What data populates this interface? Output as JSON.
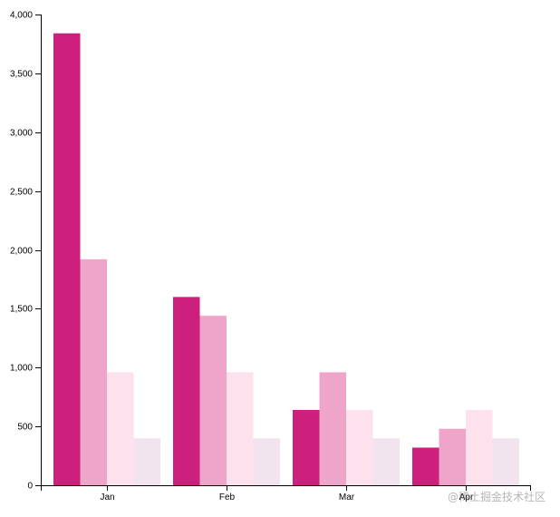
{
  "chart_data": {
    "type": "bar",
    "categories": [
      "Jan",
      "Feb",
      "Mar",
      "Apr"
    ],
    "series": [
      {
        "color": "#cd1f7c",
        "values": [
          3840,
          1600,
          640,
          320
        ]
      },
      {
        "color": "#efa5c9",
        "values": [
          1920,
          1440,
          960,
          480
        ]
      },
      {
        "color": "#fde1ec",
        "values": [
          960,
          960,
          640,
          640
        ]
      },
      {
        "color": "#f1e4ee",
        "values": [
          400,
          400,
          400,
          400
        ]
      }
    ],
    "yticks": [
      0,
      500,
      1000,
      1500,
      2000,
      2500,
      3000,
      3500,
      4000
    ],
    "ytick_labels": [
      "0",
      "500",
      "1,000",
      "1,500",
      "2,000",
      "2,500",
      "3,000",
      "3,500",
      "4,000"
    ],
    "ylim": [
      0,
      4000
    ],
    "xlabel": "",
    "ylabel": "",
    "title": "",
    "grid": false,
    "legend": "none"
  },
  "watermark": "@稀土掘金技术社区"
}
